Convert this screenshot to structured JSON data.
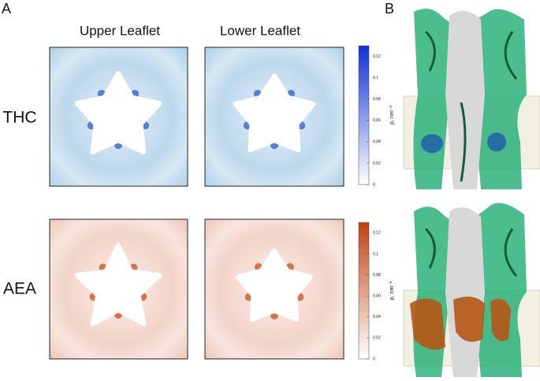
{
  "panel_labels": [
    "A",
    "B"
  ],
  "column_headers": [
    "Upper Leaflet",
    "Lower Leaflet"
  ],
  "row_labels": [
    "THC",
    "AEA"
  ],
  "colorbars": [
    {
      "lim": [
        0,
        0.13
      ],
      "ticks": [
        0,
        0.02,
        0.04,
        0.06,
        0.08,
        0.1,
        0.12
      ],
      "label": "ρ, nm⁻³",
      "colors": [
        "#ffffff",
        "#1030d8"
      ]
    },
    {
      "lim": [
        0,
        0.13
      ],
      "ticks": [
        0,
        0.02,
        0.04,
        0.06,
        0.08,
        0.1,
        0.12
      ],
      "label": "ρ, nm⁻³",
      "colors": [
        "#ffffff",
        "#c0420e"
      ]
    }
  ]
}
